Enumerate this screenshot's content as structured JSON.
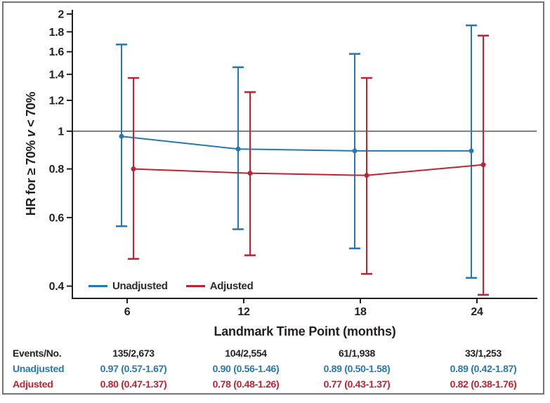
{
  "figure": {
    "background": "#ffffff",
    "border_color": "#757575"
  },
  "chart_data": {
    "type": "line",
    "title": "",
    "xlabel": "Landmark Time Point (months)",
    "ylabel": "HR for ≥ 70% v < 70%",
    "ylabel_parts": [
      "HR for ≥ 70% ",
      "v",
      " < 70%"
    ],
    "x_values": [
      6,
      12,
      18,
      24
    ],
    "x_tick_labels": [
      "6",
      "12",
      "18",
      "24"
    ],
    "y_scale": "log",
    "ylim": [
      0.372,
      2.05
    ],
    "y_ticks": [
      0.4,
      0.6,
      0.8,
      1,
      1.2,
      1.4,
      1.6,
      1.8,
      2
    ],
    "y_tick_labels": [
      "0.4",
      "0.6",
      "0.8",
      "1",
      "1.2",
      "1.4",
      "1.6",
      "1.8",
      "2"
    ],
    "grid": false,
    "reference_line": 1,
    "reference_line_color": "#7d7d7d",
    "axis_color": "#231f20",
    "legend_position": "inside-bottom-left",
    "series": [
      {
        "name": "Unadjusted",
        "color": "#2678b2",
        "values": [
          0.97,
          0.9,
          0.89,
          0.89
        ],
        "ci_low": [
          0.57,
          0.56,
          0.5,
          0.42
        ],
        "ci_high": [
          1.67,
          1.46,
          1.58,
          1.87
        ]
      },
      {
        "name": "Adjusted",
        "color": "#bc2433",
        "values": [
          0.8,
          0.78,
          0.77,
          0.82
        ],
        "ci_low": [
          0.47,
          0.48,
          0.43,
          0.38
        ],
        "ci_high": [
          1.37,
          1.26,
          1.37,
          1.76
        ]
      }
    ]
  },
  "table": {
    "rows": [
      {
        "label": "Events/No.",
        "color": "#231f20",
        "values": [
          "135/2,673",
          "104/2,554",
          "61/1,938",
          "33/1,253"
        ]
      },
      {
        "label": "Unadjusted",
        "color": "#2678b2",
        "values": [
          "0.97 (0.57-1.67)",
          "0.90 (0.56-1.46)",
          "0.89 (0.50-1.58)",
          "0.89 (0.42-1.87)"
        ]
      },
      {
        "label": "Adjusted",
        "color": "#bc2433",
        "values": [
          "0.80 (0.47-1.37)",
          "0.78 (0.48-1.26)",
          "0.77 (0.43-1.37)",
          "0.82 (0.38-1.76)"
        ]
      }
    ]
  }
}
